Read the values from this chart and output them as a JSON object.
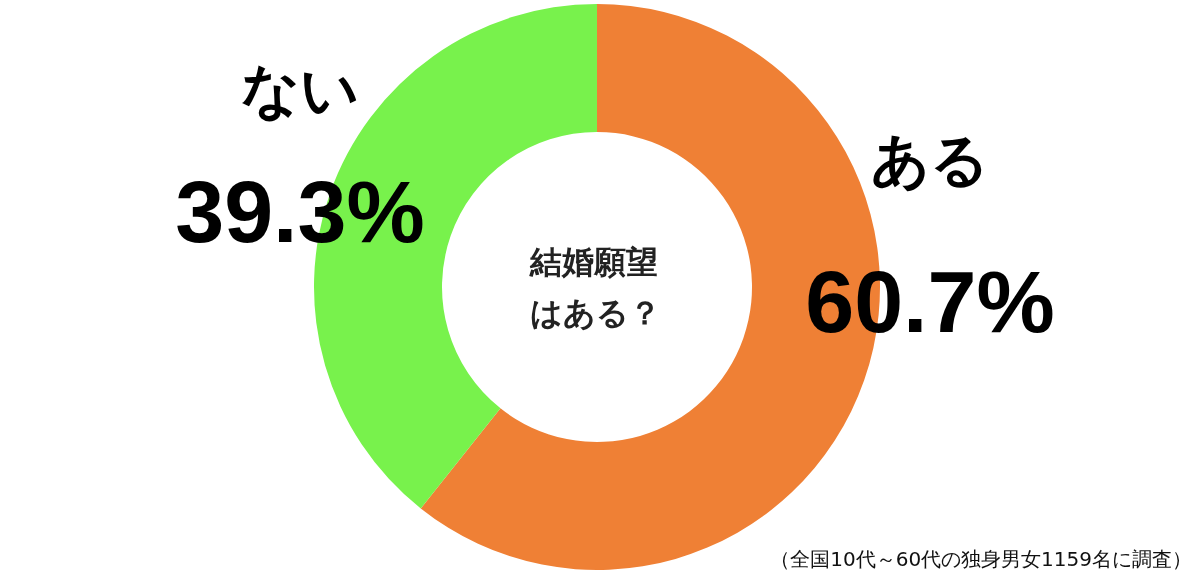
{
  "chart_data": {
    "type": "donut",
    "title": "結婚願望はある？",
    "categories": [
      "ある",
      "ない"
    ],
    "values": [
      60.7,
      39.3
    ],
    "colors": [
      "#ef8035",
      "#78f24c"
    ],
    "value_labels": [
      "60.7%",
      "39.3%"
    ],
    "annotations": [
      "（全国10代～60代の独身男女1159名に調査）"
    ]
  }
}
